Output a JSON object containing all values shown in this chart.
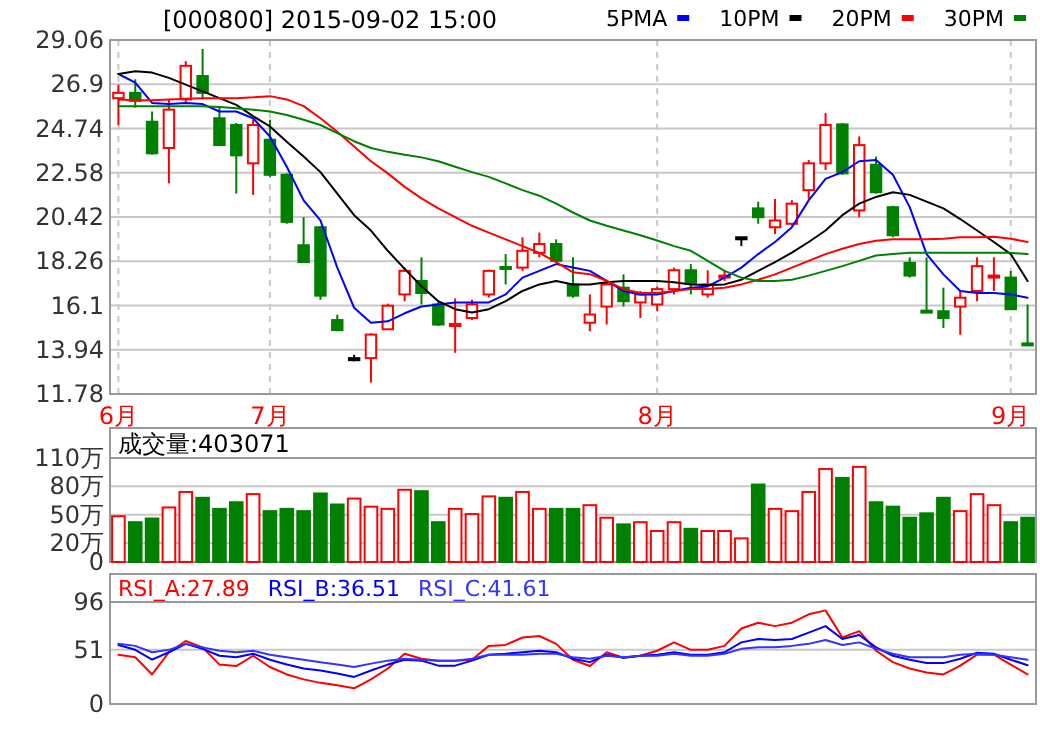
{
  "chart_data": [
    {
      "type": "candlestick",
      "title": "[000800] 2015-09-02 15:00",
      "categories": [
        "6月",
        null,
        null,
        null,
        null,
        null,
        null,
        null,
        null,
        "7月",
        null,
        null,
        null,
        null,
        null,
        null,
        null,
        null,
        null,
        null,
        null,
        null,
        null,
        null,
        null,
        null,
        null,
        null,
        null,
        null,
        null,
        null,
        "8月",
        null,
        null,
        null,
        null,
        null,
        null,
        null,
        null,
        null,
        null,
        null,
        null,
        null,
        null,
        null,
        null,
        null,
        null,
        null,
        null,
        "9月",
        null
      ],
      "ohlc": [
        [
          26.22,
          26.88,
          24.91,
          26.48
        ],
        [
          26.48,
          27.14,
          25.76,
          26.09
        ],
        [
          25.07,
          25.57,
          23.46,
          23.53
        ],
        [
          23.79,
          26.16,
          22.06,
          25.66
        ],
        [
          26.16,
          28.03,
          26.0,
          27.8
        ],
        [
          27.3,
          28.62,
          26.16,
          26.48
        ],
        [
          25.24,
          25.83,
          23.93,
          23.93
        ],
        [
          24.91,
          25.01,
          21.56,
          23.43
        ],
        [
          23.04,
          25.17,
          21.5,
          24.91
        ],
        [
          24.19,
          25.17,
          22.38,
          22.48
        ],
        [
          22.48,
          22.55,
          20.09,
          20.18
        ],
        [
          19.04,
          20.41,
          18.22,
          18.22
        ],
        [
          19.92,
          19.99,
          16.38,
          16.58
        ],
        [
          15.39,
          15.65,
          14.84,
          14.9
        ],
        [
          13.53,
          13.69,
          13.37,
          13.53
        ],
        [
          13.53,
          14.74,
          12.34,
          14.68
        ],
        [
          14.94,
          16.19,
          14.9,
          16.09
        ],
        [
          16.64,
          17.95,
          16.31,
          17.79
        ],
        [
          17.3,
          18.45,
          16.15,
          16.71
        ],
        [
          16.15,
          16.31,
          15.1,
          15.17
        ],
        [
          15.1,
          16.44,
          13.79,
          15.2
        ],
        [
          15.49,
          16.38,
          15.39,
          16.15
        ],
        [
          16.64,
          17.85,
          16.48,
          17.79
        ],
        [
          17.98,
          18.61,
          17.13,
          17.92
        ],
        [
          17.95,
          19.43,
          17.79,
          18.77
        ],
        [
          18.67,
          19.66,
          18.45,
          19.1
        ],
        [
          19.1,
          19.33,
          18.22,
          18.28
        ],
        [
          17.13,
          18.45,
          16.48,
          16.58
        ],
        [
          15.26,
          16.64,
          14.84,
          15.66
        ],
        [
          16.05,
          17.36,
          15.17,
          17.13
        ],
        [
          16.97,
          17.62,
          16.05,
          16.31
        ],
        [
          16.25,
          16.81,
          15.49,
          16.64
        ],
        [
          16.15,
          17.03,
          15.82,
          16.9
        ],
        [
          16.9,
          17.95,
          16.64,
          17.82
        ],
        [
          17.82,
          18.12,
          16.64,
          17.17
        ],
        [
          16.64,
          17.82,
          16.48,
          17.13
        ],
        [
          17.5,
          17.82,
          17.3,
          17.56
        ],
        [
          19.43,
          19.43,
          19.0,
          19.43
        ],
        [
          20.84,
          21.17,
          20.09,
          20.41
        ],
        [
          19.92,
          21.3,
          19.59,
          20.25
        ],
        [
          20.09,
          21.24,
          19.99,
          21.07
        ],
        [
          21.73,
          23.2,
          21.3,
          23.04
        ],
        [
          23.04,
          25.5,
          22.71,
          24.91
        ],
        [
          24.94,
          25.01,
          22.48,
          22.55
        ],
        [
          20.74,
          24.35,
          20.41,
          23.93
        ],
        [
          22.97,
          23.37,
          21.56,
          21.63
        ],
        [
          20.9,
          20.97,
          19.43,
          19.53
        ],
        [
          18.18,
          18.45,
          17.46,
          17.56
        ],
        [
          15.85,
          18.45,
          15.82,
          15.82
        ],
        [
          15.82,
          16.97,
          15.0,
          15.49
        ],
        [
          16.05,
          16.81,
          14.67,
          16.48
        ],
        [
          16.81,
          18.45,
          16.31,
          18.02
        ],
        [
          17.5,
          18.45,
          16.81,
          17.56
        ],
        [
          17.46,
          17.79,
          15.92,
          15.92
        ],
        [
          14.25,
          16.15,
          14.18,
          14.18
        ]
      ],
      "colors": [
        "#ff0000",
        "#008000",
        "#008000",
        "#ff0000",
        "#ff0000",
        "#008000",
        "#008000",
        "#008000",
        "#ff0000",
        "#008000",
        "#008000",
        "#008000",
        "#008000",
        "#008000",
        "#000000",
        "#ff0000",
        "#ff0000",
        "#ff0000",
        "#008000",
        "#008000",
        "#ff0000",
        "#ff0000",
        "#ff0000",
        "#008000",
        "#ff0000",
        "#ff0000",
        "#008000",
        "#008000",
        "#ff0000",
        "#ff0000",
        "#008000",
        "#ff0000",
        "#ff0000",
        "#ff0000",
        "#008000",
        "#ff0000",
        "#ff0000",
        "#000000",
        "#008000",
        "#ff0000",
        "#ff0000",
        "#ff0000",
        "#ff0000",
        "#008000",
        "#ff0000",
        "#008000",
        "#008000",
        "#008000",
        "#008000",
        "#008000",
        "#ff0000",
        "#ff0000",
        "#ff0000",
        "#008000",
        "#008000"
      ],
      "series": [
        {
          "name": "5PMA",
          "type": "line",
          "color": "#0000ff",
          "values": [
            27.4,
            26.98,
            25.99,
            25.93,
            25.99,
            25.93,
            25.57,
            25.57,
            25.24,
            24.35,
            22.87,
            21.23,
            20.25,
            17.95,
            15.99,
            15.26,
            15.33,
            15.72,
            16.05,
            16.15,
            16.25,
            16.25,
            16.25,
            16.64,
            17.46,
            17.79,
            18.12,
            17.95,
            17.79,
            17.3,
            16.81,
            16.64,
            16.64,
            16.81,
            16.97,
            17.03,
            17.46,
            17.95,
            18.61,
            19.2,
            19.92,
            21.23,
            22.28,
            22.61,
            23.14,
            23.2,
            22.48,
            20.9,
            18.61,
            17.62,
            16.81,
            16.71,
            16.71,
            16.64,
            16.48
          ]
        },
        {
          "name": "10PM",
          "type": "line",
          "color": "#000000",
          "values": [
            27.4,
            27.53,
            27.47,
            27.21,
            26.88,
            26.55,
            26.22,
            25.89,
            25.34,
            24.84,
            24.09,
            23.37,
            22.61,
            21.56,
            20.51,
            19.76,
            18.77,
            17.89,
            17.04,
            16.31,
            15.92,
            15.76,
            15.92,
            16.31,
            16.81,
            17.13,
            17.3,
            17.13,
            17.13,
            17.23,
            17.3,
            17.3,
            17.3,
            17.23,
            17.13,
            17.1,
            17.13,
            17.36,
            17.79,
            18.22,
            18.68,
            19.2,
            19.76,
            20.51,
            21.07,
            21.4,
            21.63,
            21.5,
            21.17,
            20.84,
            20.32,
            19.76,
            19.2,
            18.61,
            17.3
          ]
        },
        {
          "name": "20PM",
          "type": "line",
          "color": "#ff0000",
          "values": [
            26.16,
            26.12,
            26.12,
            26.16,
            26.19,
            26.22,
            26.22,
            26.22,
            26.26,
            26.32,
            26.16,
            25.83,
            25.24,
            24.58,
            23.86,
            23.14,
            22.55,
            21.89,
            21.33,
            20.84,
            20.41,
            19.99,
            19.66,
            19.33,
            19.0,
            18.67,
            18.22,
            17.72,
            17.63,
            17.3,
            16.9,
            16.71,
            16.71,
            16.81,
            16.9,
            16.9,
            16.97,
            17.13,
            17.36,
            17.62,
            17.95,
            18.28,
            18.61,
            18.87,
            19.1,
            19.26,
            19.33,
            19.33,
            19.33,
            19.36,
            19.43,
            19.43,
            19.46,
            19.36,
            19.2
          ]
        },
        {
          "name": "30PM",
          "type": "line",
          "color": "#008000",
          "values": [
            25.83,
            25.83,
            25.83,
            25.83,
            25.83,
            25.83,
            25.79,
            25.73,
            25.66,
            25.57,
            25.4,
            25.17,
            24.91,
            24.51,
            24.12,
            23.79,
            23.6,
            23.46,
            23.33,
            23.14,
            22.87,
            22.61,
            22.38,
            22.06,
            21.73,
            21.46,
            21.07,
            20.64,
            20.25,
            19.99,
            19.76,
            19.53,
            19.27,
            19.0,
            18.77,
            18.28,
            17.79,
            17.46,
            17.3,
            17.3,
            17.36,
            17.56,
            17.79,
            18.02,
            18.28,
            18.54,
            18.61,
            18.67,
            18.67,
            18.67,
            18.67,
            18.67,
            18.67,
            18.67,
            18.61
          ]
        }
      ],
      "ylim": [
        11.78,
        29.06
      ],
      "yticks": [
        11.78,
        13.94,
        16.1,
        18.26,
        20.42,
        22.58,
        24.74,
        26.9,
        29.06
      ],
      "grid": true,
      "legend": "top right"
    },
    {
      "type": "bar",
      "annotations": [
        "成交量:403071"
      ],
      "categories": [
        null,
        null,
        null,
        null,
        null,
        null,
        null,
        null,
        null,
        null,
        null,
        null,
        null,
        null,
        null,
        null,
        null,
        null,
        null,
        null,
        null,
        null,
        null,
        null,
        null,
        null,
        null,
        null,
        null,
        null,
        null,
        null,
        null,
        null,
        null,
        null,
        null,
        null,
        null,
        null,
        null,
        null,
        null,
        null,
        null,
        null,
        null,
        null,
        null,
        null,
        null,
        null,
        null,
        null,
        null
      ],
      "values": [
        48.4,
        42.1,
        46.0,
        57.7,
        74.1,
        67.9,
        56.2,
        63.2,
        71.8,
        53.8,
        56.2,
        53.8,
        72.5,
        60.8,
        67.1,
        58.5,
        56.2,
        76.4,
        74.9,
        42.1,
        56.2,
        50.7,
        69.4,
        67.9,
        74.1,
        56.2,
        56.2,
        56.2,
        60.1,
        46.8,
        39.8,
        42.1,
        32.8,
        42.1,
        35.1,
        32.8,
        32.8,
        25.0,
        81.9,
        56.2,
        53.8,
        74.1,
        98.3,
        88.9,
        100.6,
        63.2,
        58.5,
        46.8,
        51.5,
        67.9,
        53.8,
        71.8,
        60.1,
        42.1,
        46.8
      ],
      "colors": [
        "#ff0000",
        "#008000",
        "#008000",
        "#ff0000",
        "#ff0000",
        "#008000",
        "#008000",
        "#008000",
        "#ff0000",
        "#008000",
        "#008000",
        "#008000",
        "#008000",
        "#008000",
        "#ff0000",
        "#ff0000",
        "#ff0000",
        "#ff0000",
        "#008000",
        "#008000",
        "#ff0000",
        "#ff0000",
        "#ff0000",
        "#008000",
        "#ff0000",
        "#ff0000",
        "#008000",
        "#008000",
        "#ff0000",
        "#ff0000",
        "#008000",
        "#ff0000",
        "#ff0000",
        "#ff0000",
        "#008000",
        "#ff0000",
        "#ff0000",
        "#ff0000",
        "#008000",
        "#ff0000",
        "#ff0000",
        "#ff0000",
        "#ff0000",
        "#008000",
        "#ff0000",
        "#008000",
        "#008000",
        "#008000",
        "#008000",
        "#008000",
        "#ff0000",
        "#ff0000",
        "#ff0000",
        "#008000",
        "#008000"
      ],
      "ylim": [
        0,
        110
      ],
      "yticks": [
        0,
        {
          "value": 20,
          "label": "20万"
        },
        {
          "value": 50,
          "label": "50万"
        },
        {
          "value": 80,
          "label": "80万"
        },
        {
          "value": 110,
          "label": "110万"
        }
      ],
      "grid": "y"
    },
    {
      "type": "line",
      "categories": [
        null,
        null,
        null,
        null,
        null,
        null,
        null,
        null,
        null,
        null,
        null,
        null,
        null,
        null,
        null,
        null,
        null,
        null,
        null,
        null,
        null,
        null,
        null,
        null,
        null,
        null,
        null,
        null,
        null,
        null,
        null,
        null,
        null,
        null,
        null,
        null,
        null,
        null,
        null,
        null,
        null,
        null,
        null,
        null,
        null,
        null,
        null,
        null,
        null,
        null,
        null,
        null,
        null,
        null,
        null
      ],
      "series": [
        {
          "name": "RSI_A:27.89",
          "color": "#ff0000",
          "values": [
            46.4,
            44.0,
            27.8,
            48.7,
            59.3,
            53.3,
            37.1,
            35.7,
            45.4,
            34.8,
            27.8,
            23.2,
            19.9,
            17.6,
            14.8,
            23.2,
            33.4,
            47.3,
            42.6,
            40.8,
            40.8,
            41.7,
            54.7,
            55.6,
            62.6,
            64.0,
            56.6,
            41.7,
            35.7,
            48.7,
            43.6,
            45.4,
            50.1,
            58.0,
            51.0,
            51.0,
            54.7,
            71.0,
            76.5,
            73.3,
            76.5,
            84.4,
            88.1,
            62.6,
            68.6,
            50.1,
            39.4,
            33.4,
            29.6,
            27.8,
            36.1,
            46.4,
            46.4,
            37.1,
            27.9
          ]
        },
        {
          "name": "RSI_B:36.51",
          "color": "#0000ff",
          "values": [
            55.6,
            51.0,
            41.7,
            48.7,
            56.6,
            51.9,
            45.4,
            44.0,
            47.3,
            41.7,
            37.1,
            33.4,
            31.5,
            28.7,
            25.5,
            31.5,
            37.1,
            41.7,
            40.8,
            36.1,
            36.1,
            40.8,
            46.4,
            47.3,
            48.7,
            50.1,
            48.7,
            42.6,
            39.4,
            46.4,
            43.6,
            45.4,
            46.4,
            48.7,
            46.4,
            46.4,
            48.7,
            58.0,
            61.2,
            60.3,
            61.2,
            67.2,
            73.3,
            61.2,
            64.9,
            53.3,
            45.4,
            41.7,
            38.5,
            38.5,
            42.6,
            48.2,
            47.3,
            41.7,
            36.5
          ]
        },
        {
          "name": "RSI_C:41.61",
          "color": "#3333ff",
          "values": [
            56.6,
            54.7,
            48.7,
            51.0,
            56.6,
            53.3,
            50.1,
            48.7,
            50.1,
            46.4,
            44.0,
            41.7,
            39.4,
            37.1,
            34.8,
            38.0,
            40.8,
            42.6,
            41.7,
            40.8,
            40.8,
            42.6,
            46.4,
            46.4,
            46.4,
            47.3,
            47.3,
            44.0,
            42.6,
            45.4,
            44.0,
            45.4,
            45.4,
            47.3,
            45.4,
            45.4,
            47.3,
            51.9,
            53.3,
            53.3,
            54.7,
            56.6,
            60.3,
            55.6,
            58.0,
            51.9,
            47.3,
            44.0,
            44.0,
            44.0,
            46.4,
            47.3,
            46.4,
            44.0,
            41.6
          ]
        }
      ],
      "ylim": [
        0,
        96
      ],
      "yticks": [
        0,
        51,
        96
      ],
      "ref_lines": [
        {
          "axis": "y",
          "value": 51,
          "color": "#c8c8c8"
        }
      ],
      "legend": "top left"
    }
  ]
}
